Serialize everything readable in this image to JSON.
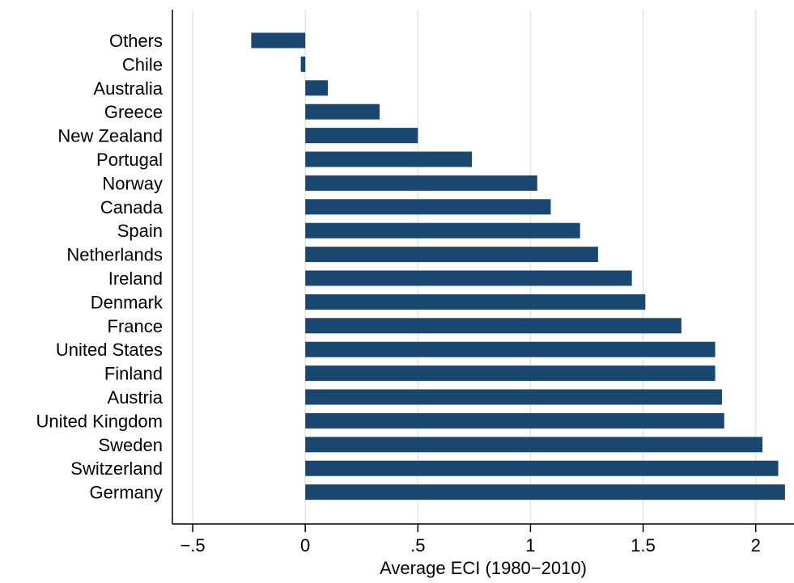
{
  "chart_data": {
    "type": "bar",
    "orientation": "horizontal",
    "categories": [
      "Others",
      "Chile",
      "Australia",
      "Greece",
      "New Zealand",
      "Portugal",
      "Norway",
      "Canada",
      "Spain",
      "Netherlands",
      "Ireland",
      "Denmark",
      "France",
      "United States",
      "Finland",
      "Austria",
      "United Kingdom",
      "Sweden",
      "Switzerland",
      "Germany"
    ],
    "values": [
      -0.24,
      -0.02,
      0.1,
      0.33,
      0.5,
      0.74,
      1.03,
      1.09,
      1.22,
      1.3,
      1.45,
      1.51,
      1.67,
      1.82,
      1.82,
      1.85,
      1.86,
      2.03,
      2.1,
      2.13
    ],
    "xlabel": "Average ECI (1980−2010)",
    "ylabel": "",
    "xlim": [
      -0.59,
      2.17
    ],
    "xticks": [
      -0.5,
      0,
      0.5,
      1,
      1.5,
      2
    ],
    "xtick_labels": [
      "−.5",
      "0",
      ".5",
      "1",
      "1.5",
      "2"
    ],
    "grid": "vertical",
    "bar_color": "#1a476f",
    "grid_color": "#dde8ec"
  }
}
